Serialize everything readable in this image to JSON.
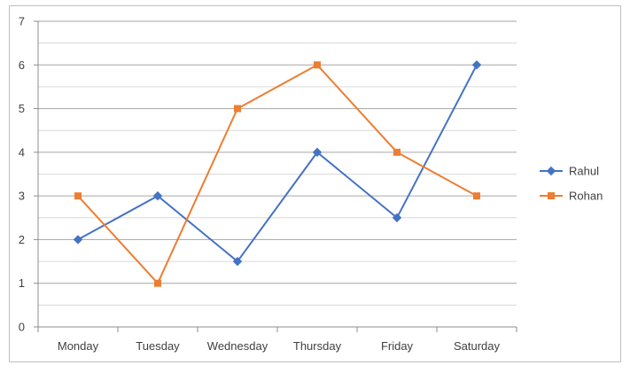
{
  "chart_data": {
    "type": "line",
    "title": "",
    "xlabel": "",
    "ylabel": "",
    "categories": [
      "Monday",
      "Tuesday",
      "Wednesday",
      "Thursday",
      "Friday",
      "Saturday"
    ],
    "ylim": [
      0,
      7
    ],
    "yticks": [
      0,
      1,
      2,
      3,
      4,
      5,
      6,
      7
    ],
    "grid": true,
    "legend_position": "right",
    "series": [
      {
        "name": "Rahul",
        "values": [
          2,
          3,
          1.5,
          4,
          2.5,
          6
        ],
        "color": "#4472c4",
        "marker": "diamond"
      },
      {
        "name": "Rohan",
        "values": [
          3,
          1,
          5,
          6,
          4,
          3
        ],
        "color": "#ed7d31",
        "marker": "square"
      }
    ]
  }
}
